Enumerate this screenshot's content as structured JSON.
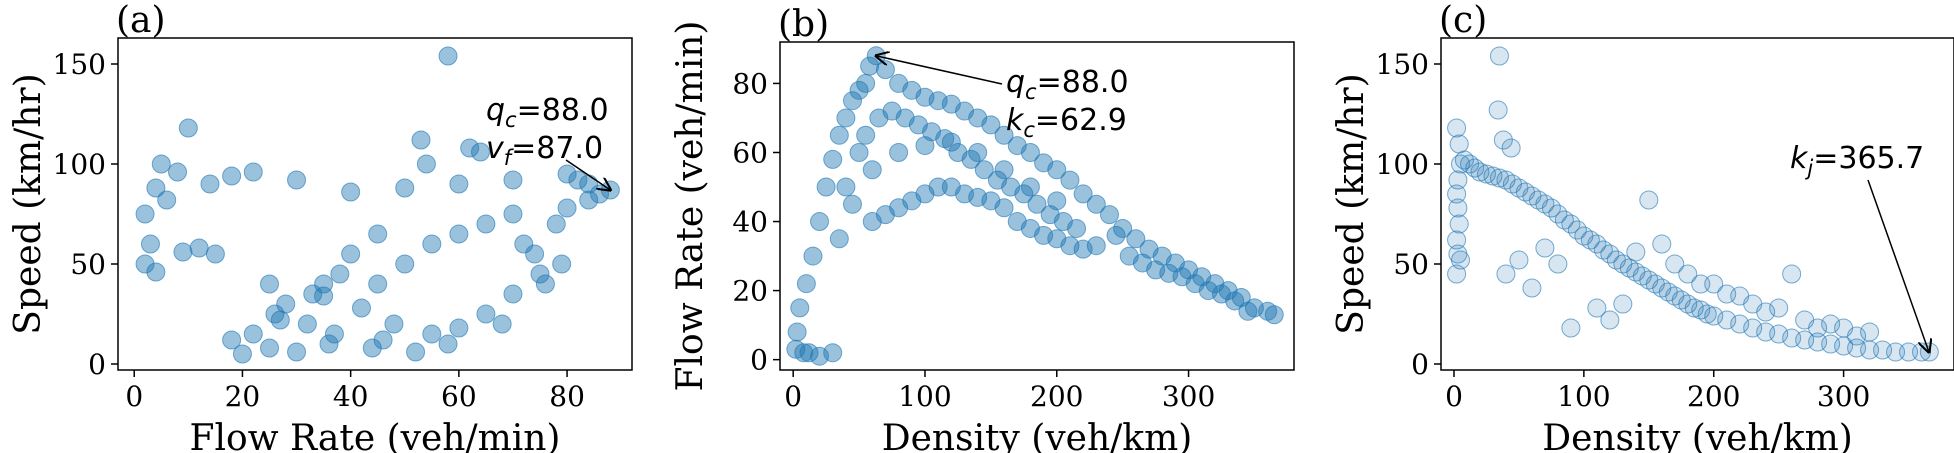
{
  "chart_data": [
    {
      "type": "scatter",
      "panel": "(a)",
      "xlabel": "Flow Rate (veh/min)",
      "ylabel": "Speed (km/hr)",
      "xlim": [
        -3,
        92
      ],
      "ylim": [
        -3,
        163
      ],
      "xticks": [
        0,
        20,
        40,
        60,
        80
      ],
      "yticks": [
        0,
        50,
        100,
        150
      ],
      "point_color": "#1f77b4",
      "point_opacity": 0.45,
      "annotation": {
        "lines": [
          {
            "symbol": "q",
            "sub": "c",
            "eq": "=88.0"
          },
          {
            "symbol": "v",
            "sub": "f",
            "eq": "=87.0"
          }
        ],
        "arrow_to": [
          88,
          87
        ]
      },
      "points": [
        [
          58,
          154
        ],
        [
          10,
          118
        ],
        [
          62,
          108
        ],
        [
          64,
          106
        ],
        [
          53,
          112
        ],
        [
          54,
          100
        ],
        [
          4,
          88
        ],
        [
          6,
          82
        ],
        [
          2,
          75
        ],
        [
          3,
          60
        ],
        [
          2,
          50
        ],
        [
          4,
          46
        ],
        [
          20,
          5
        ],
        [
          25,
          8
        ],
        [
          30,
          6
        ],
        [
          88,
          87
        ],
        [
          86,
          85
        ],
        [
          84,
          90
        ],
        [
          82,
          92
        ],
        [
          80,
          95
        ],
        [
          70,
          92
        ],
        [
          60,
          90
        ],
        [
          50,
          88
        ],
        [
          40,
          86
        ],
        [
          30,
          92
        ],
        [
          22,
          96
        ],
        [
          18,
          94
        ],
        [
          14,
          90
        ],
        [
          8,
          96
        ],
        [
          5,
          100
        ],
        [
          35,
          34
        ],
        [
          42,
          28
        ],
        [
          48,
          20
        ],
        [
          55,
          15
        ],
        [
          60,
          18
        ],
        [
          65,
          25
        ],
        [
          70,
          35
        ],
        [
          75,
          45
        ],
        [
          45,
          40
        ],
        [
          50,
          50
        ],
        [
          55,
          60
        ],
        [
          60,
          65
        ],
        [
          65,
          70
        ],
        [
          70,
          75
        ],
        [
          40,
          55
        ],
        [
          45,
          65
        ],
        [
          38,
          45
        ],
        [
          35,
          40
        ],
        [
          72,
          60
        ],
        [
          78,
          70
        ],
        [
          80,
          78
        ],
        [
          84,
          82
        ],
        [
          12,
          58
        ],
        [
          15,
          55
        ],
        [
          9,
          56
        ],
        [
          25,
          40
        ],
        [
          28,
          30
        ],
        [
          32,
          20
        ],
        [
          26,
          25
        ],
        [
          36,
          10
        ],
        [
          44,
          8
        ],
        [
          52,
          6
        ],
        [
          18,
          12
        ],
        [
          22,
          15
        ],
        [
          27,
          22
        ],
        [
          33,
          35
        ],
        [
          37,
          15
        ],
        [
          46,
          12
        ],
        [
          58,
          10
        ],
        [
          68,
          20
        ],
        [
          76,
          40
        ],
        [
          79,
          50
        ],
        [
          74,
          55
        ]
      ]
    },
    {
      "type": "scatter",
      "panel": "(b)",
      "xlabel": "Density (veh/km)",
      "ylabel": "Flow Rate (veh/min)",
      "xlim": [
        -10,
        380
      ],
      "ylim": [
        -3,
        92
      ],
      "xticks": [
        0,
        100,
        200,
        300
      ],
      "yticks": [
        0,
        20,
        40,
        60,
        80
      ],
      "point_color": "#1f77b4",
      "point_opacity": 0.45,
      "annotation": {
        "lines": [
          {
            "symbol": "q",
            "sub": "c",
            "eq": "=88.0"
          },
          {
            "symbol": "k",
            "sub": "c",
            "eq": "=62.9"
          }
        ],
        "arrow_to": [
          62.9,
          88
        ]
      },
      "points": [
        [
          63,
          88
        ],
        [
          58,
          85
        ],
        [
          55,
          80
        ],
        [
          50,
          78
        ],
        [
          45,
          75
        ],
        [
          40,
          70
        ],
        [
          35,
          65
        ],
        [
          30,
          58
        ],
        [
          25,
          50
        ],
        [
          20,
          40
        ],
        [
          15,
          30
        ],
        [
          10,
          22
        ],
        [
          5,
          15
        ],
        [
          3,
          8
        ],
        [
          2,
          3
        ],
        [
          8,
          2
        ],
        [
          12,
          2
        ],
        [
          20,
          1
        ],
        [
          30,
          2
        ],
        [
          70,
          84
        ],
        [
          80,
          80
        ],
        [
          90,
          78
        ],
        [
          100,
          76
        ],
        [
          110,
          75
        ],
        [
          120,
          74
        ],
        [
          130,
          72
        ],
        [
          140,
          70
        ],
        [
          150,
          68
        ],
        [
          160,
          65
        ],
        [
          170,
          62
        ],
        [
          180,
          60
        ],
        [
          190,
          57
        ],
        [
          200,
          55
        ],
        [
          210,
          52
        ],
        [
          220,
          48
        ],
        [
          230,
          45
        ],
        [
          240,
          42
        ],
        [
          250,
          38
        ],
        [
          260,
          35
        ],
        [
          270,
          32
        ],
        [
          280,
          30
        ],
        [
          290,
          28
        ],
        [
          300,
          26
        ],
        [
          310,
          24
        ],
        [
          320,
          22
        ],
        [
          330,
          20
        ],
        [
          340,
          18
        ],
        [
          350,
          15
        ],
        [
          360,
          14
        ],
        [
          365,
          13
        ],
        [
          60,
          40
        ],
        [
          70,
          42
        ],
        [
          80,
          44
        ],
        [
          90,
          46
        ],
        [
          100,
          48
        ],
        [
          110,
          50
        ],
        [
          120,
          50
        ],
        [
          130,
          48
        ],
        [
          140,
          47
        ],
        [
          150,
          46
        ],
        [
          160,
          44
        ],
        [
          170,
          40
        ],
        [
          180,
          38
        ],
        [
          190,
          36
        ],
        [
          200,
          35
        ],
        [
          210,
          33
        ],
        [
          220,
          32
        ],
        [
          230,
          33
        ],
        [
          60,
          55
        ],
        [
          80,
          60
        ],
        [
          100,
          62
        ],
        [
          120,
          63
        ],
        [
          140,
          60
        ],
        [
          160,
          55
        ],
        [
          180,
          50
        ],
        [
          200,
          46
        ],
        [
          40,
          50
        ],
        [
          45,
          45
        ],
        [
          35,
          35
        ],
        [
          50,
          60
        ],
        [
          55,
          65
        ],
        [
          65,
          70
        ],
        [
          75,
          72
        ],
        [
          85,
          70
        ],
        [
          95,
          68
        ],
        [
          105,
          66
        ],
        [
          115,
          64
        ],
        [
          125,
          60
        ],
        [
          135,
          58
        ],
        [
          145,
          55
        ],
        [
          155,
          52
        ],
        [
          165,
          50
        ],
        [
          175,
          48
        ],
        [
          185,
          45
        ],
        [
          195,
          42
        ],
        [
          205,
          40
        ],
        [
          215,
          38
        ],
        [
          245,
          36
        ],
        [
          255,
          30
        ],
        [
          265,
          28
        ],
        [
          275,
          26
        ],
        [
          285,
          25
        ],
        [
          295,
          24
        ],
        [
          305,
          22
        ],
        [
          315,
          20
        ],
        [
          325,
          19
        ],
        [
          335,
          17
        ],
        [
          345,
          14
        ]
      ]
    },
    {
      "type": "scatter",
      "panel": "(c)",
      "xlabel": "Density (veh/km)",
      "ylabel": "Speed (km/hr)",
      "xlim": [
        -10,
        385
      ],
      "ylim": [
        -3,
        163
      ],
      "xticks": [
        0,
        100,
        200,
        300
      ],
      "yticks": [
        0,
        50,
        100,
        150
      ],
      "point_color": "#1f77b4",
      "point_opacity": 0.18,
      "annotation": {
        "lines": [
          {
            "symbol": "k",
            "sub": "j",
            "eq": "=365.7"
          }
        ],
        "arrow_to": [
          365.7,
          6
        ]
      },
      "points": [
        [
          35,
          154
        ],
        [
          2,
          118
        ],
        [
          4,
          110
        ],
        [
          5,
          100
        ],
        [
          3,
          92
        ],
        [
          2,
          85
        ],
        [
          3,
          78
        ],
        [
          4,
          70
        ],
        [
          2,
          62
        ],
        [
          3,
          55
        ],
        [
          2,
          45
        ],
        [
          5,
          52
        ],
        [
          34,
          127
        ],
        [
          38,
          112
        ],
        [
          44,
          108
        ],
        [
          8,
          102
        ],
        [
          12,
          100
        ],
        [
          16,
          98
        ],
        [
          20,
          96
        ],
        [
          25,
          95
        ],
        [
          30,
          94
        ],
        [
          35,
          93
        ],
        [
          40,
          92
        ],
        [
          45,
          90
        ],
        [
          50,
          88
        ],
        [
          55,
          86
        ],
        [
          60,
          84
        ],
        [
          65,
          82
        ],
        [
          70,
          80
        ],
        [
          75,
          78
        ],
        [
          80,
          75
        ],
        [
          85,
          72
        ],
        [
          90,
          70
        ],
        [
          95,
          67
        ],
        [
          100,
          64
        ],
        [
          105,
          62
        ],
        [
          110,
          60
        ],
        [
          115,
          57
        ],
        [
          120,
          55
        ],
        [
          125,
          52
        ],
        [
          130,
          50
        ],
        [
          135,
          48
        ],
        [
          140,
          46
        ],
        [
          145,
          44
        ],
        [
          150,
          42
        ],
        [
          155,
          40
        ],
        [
          160,
          38
        ],
        [
          165,
          36
        ],
        [
          170,
          34
        ],
        [
          175,
          32
        ],
        [
          180,
          30
        ],
        [
          185,
          28
        ],
        [
          190,
          27
        ],
        [
          195,
          25
        ],
        [
          200,
          24
        ],
        [
          210,
          22
        ],
        [
          220,
          20
        ],
        [
          230,
          18
        ],
        [
          240,
          16
        ],
        [
          250,
          15
        ],
        [
          260,
          13
        ],
        [
          270,
          12
        ],
        [
          280,
          11
        ],
        [
          290,
          10
        ],
        [
          300,
          9
        ],
        [
          310,
          8
        ],
        [
          320,
          7
        ],
        [
          330,
          7
        ],
        [
          340,
          6
        ],
        [
          350,
          6
        ],
        [
          360,
          6
        ],
        [
          366,
          6
        ],
        [
          150,
          82
        ],
        [
          160,
          60
        ],
        [
          180,
          45
        ],
        [
          200,
          40
        ],
        [
          210,
          35
        ],
        [
          230,
          30
        ],
        [
          250,
          28
        ],
        [
          270,
          22
        ],
        [
          290,
          20
        ],
        [
          300,
          18
        ],
        [
          320,
          16
        ],
        [
          260,
          45
        ],
        [
          90,
          18
        ],
        [
          110,
          28
        ],
        [
          120,
          22
        ],
        [
          130,
          30
        ],
        [
          60,
          38
        ],
        [
          40,
          45
        ],
        [
          50,
          52
        ],
        [
          70,
          58
        ],
        [
          80,
          50
        ],
        [
          140,
          56
        ],
        [
          170,
          50
        ],
        [
          190,
          40
        ],
        [
          220,
          34
        ],
        [
          240,
          26
        ],
        [
          280,
          18
        ],
        [
          310,
          14
        ]
      ]
    }
  ]
}
